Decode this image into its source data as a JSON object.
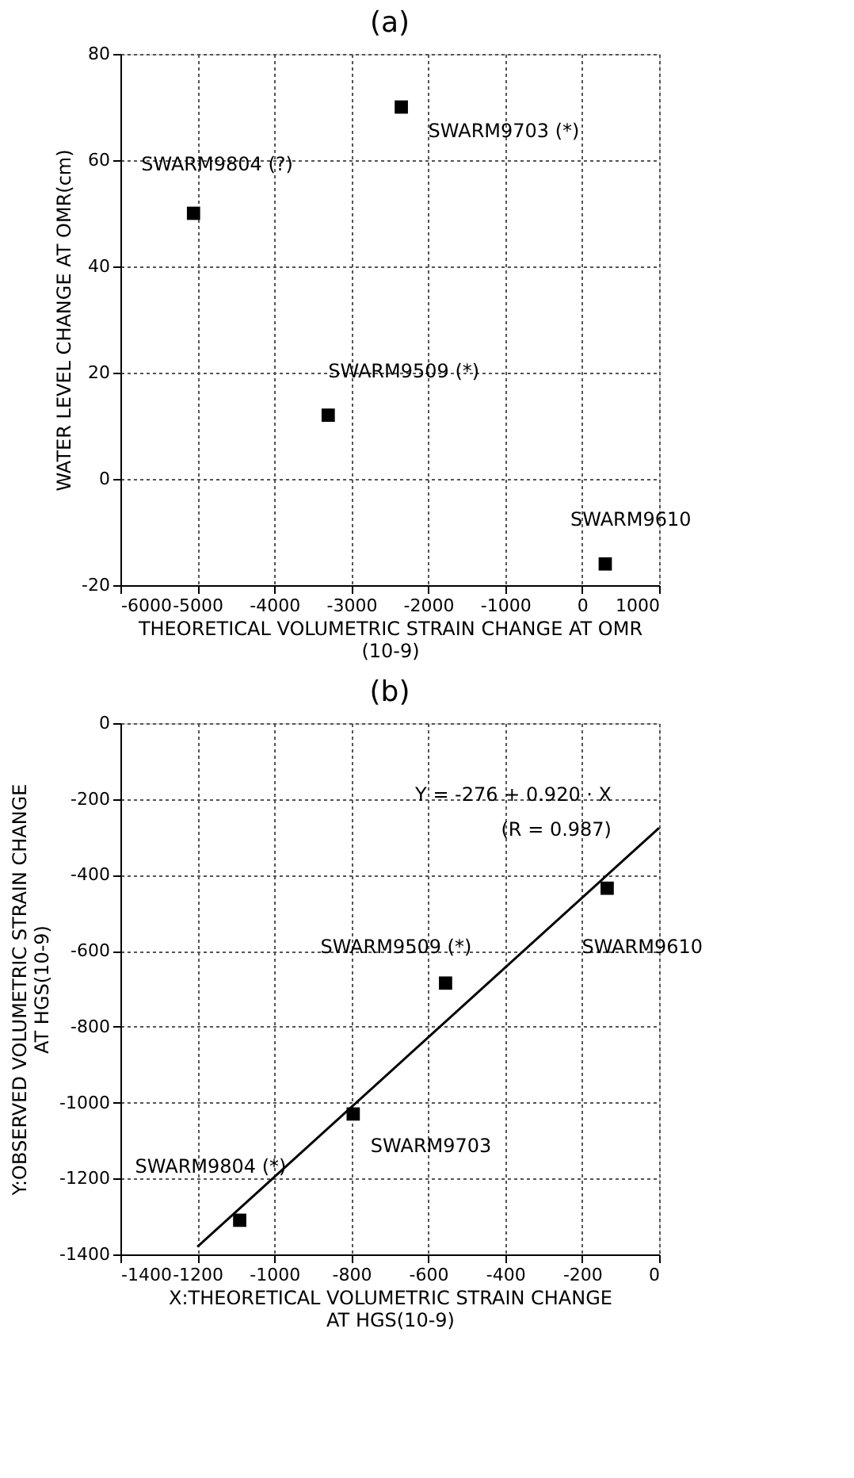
{
  "chart_data": [
    {
      "type": "scatter",
      "title": "(a)",
      "xlabel": "THEORETICAL VOLUMETRIC STRAIN CHANGE AT OMR\n(10-9)",
      "ylabel": "WATER LEVEL CHANGE AT OMR(cm)",
      "series": [
        {
          "color": "#000000",
          "x": [
            -5050,
            -2350,
            -3300,
            300
          ],
          "values": [
            50,
            70,
            12,
            -16
          ]
        }
      ],
      "annotations": [
        {
          "text": "SWARM9804 (?)",
          "x": -5050,
          "y": 50
        },
        {
          "text": "SWARM9703 (*)",
          "x": -2350,
          "y": 70
        },
        {
          "text": "SWARM9509 (*)",
          "x": -3300,
          "y": 12
        },
        {
          "text": "SWARM9610",
          "x": 300,
          "y": -16
        }
      ],
      "xlim": [
        -6000,
        1000
      ],
      "xticks": [
        -6000,
        -5000,
        -4000,
        -3000,
        -2000,
        -1000,
        0,
        1000
      ],
      "ylim": [
        -20,
        80
      ],
      "yticks": [
        -20,
        0,
        20,
        40,
        60,
        80
      ],
      "grid": true,
      "marker": "square"
    },
    {
      "type": "scatter",
      "title": "(b)",
      "xlabel": "X:THEORETICAL VOLUMETRIC STRAIN CHANGE\nAT HGS(10-9)",
      "ylabel": "Y:OBSERVED VOLUMETRIC STRAIN CHANGE\nAT HGS(10-9)",
      "series": [
        {
          "color": "#000000",
          "x": [
            -135,
            -555,
            -795,
            -1090
          ],
          "values": [
            -435,
            -685,
            -1030,
            -1310
          ]
        },
        {
          "type": "line",
          "marker": "none",
          "color": "#000000",
          "x": [
            -1200,
            0
          ],
          "values": [
            -1380,
            -276
          ]
        }
      ],
      "annotations": [
        {
          "text": "SWARM9610",
          "x": -135,
          "y": -435
        },
        {
          "text": "SWARM9509 (*)",
          "x": -555,
          "y": -685
        },
        {
          "text": "SWARM9703",
          "x": -795,
          "y": -1030
        },
        {
          "text": "SWARM9804 (*)",
          "x": -1090,
          "y": -1310
        },
        "Y = -276 + 0.920 · X",
        "(R = 0.987)"
      ],
      "xlim": [
        -1400,
        0
      ],
      "xticks": [
        -1400,
        -1200,
        -1000,
        -800,
        -600,
        -400,
        -200,
        0
      ],
      "ylim": [
        -1400,
        0
      ],
      "yticks": [
        -1400,
        -1200,
        -1000,
        -800,
        -600,
        -400,
        -200,
        0
      ],
      "grid": true,
      "marker": "square"
    }
  ]
}
